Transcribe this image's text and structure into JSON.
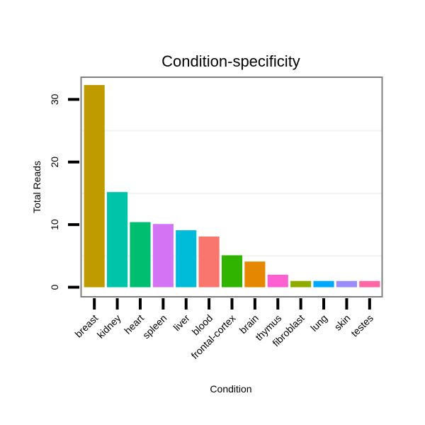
{
  "chart_data": {
    "type": "bar",
    "title": "Condition-specificity",
    "xlabel": "Condition",
    "ylabel": "Total Reads",
    "categories": [
      "breast",
      "kidney",
      "heart",
      "spleen",
      "liver",
      "blood",
      "frontal-cortex",
      "brain",
      "thymus",
      "fibroblast",
      "lung",
      "skin",
      "testes"
    ],
    "values": [
      32.3,
      15.2,
      10.4,
      10.1,
      9.1,
      8.1,
      5.1,
      4.1,
      2.0,
      1.0,
      1.0,
      1.0,
      1.0
    ],
    "colors": [
      "#C09B00",
      "#00C4AA",
      "#00BE70",
      "#D474F5",
      "#00BCD8",
      "#F8766D",
      "#31B400",
      "#E58700",
      "#FD61D1",
      "#8EAB00",
      "#00A9FF",
      "#9A8DF7",
      "#FF67A4"
    ],
    "yticks": [
      0,
      10,
      20,
      30
    ],
    "ylim": [
      -1.6,
      33.9
    ],
    "grid": true,
    "legend": "none"
  }
}
